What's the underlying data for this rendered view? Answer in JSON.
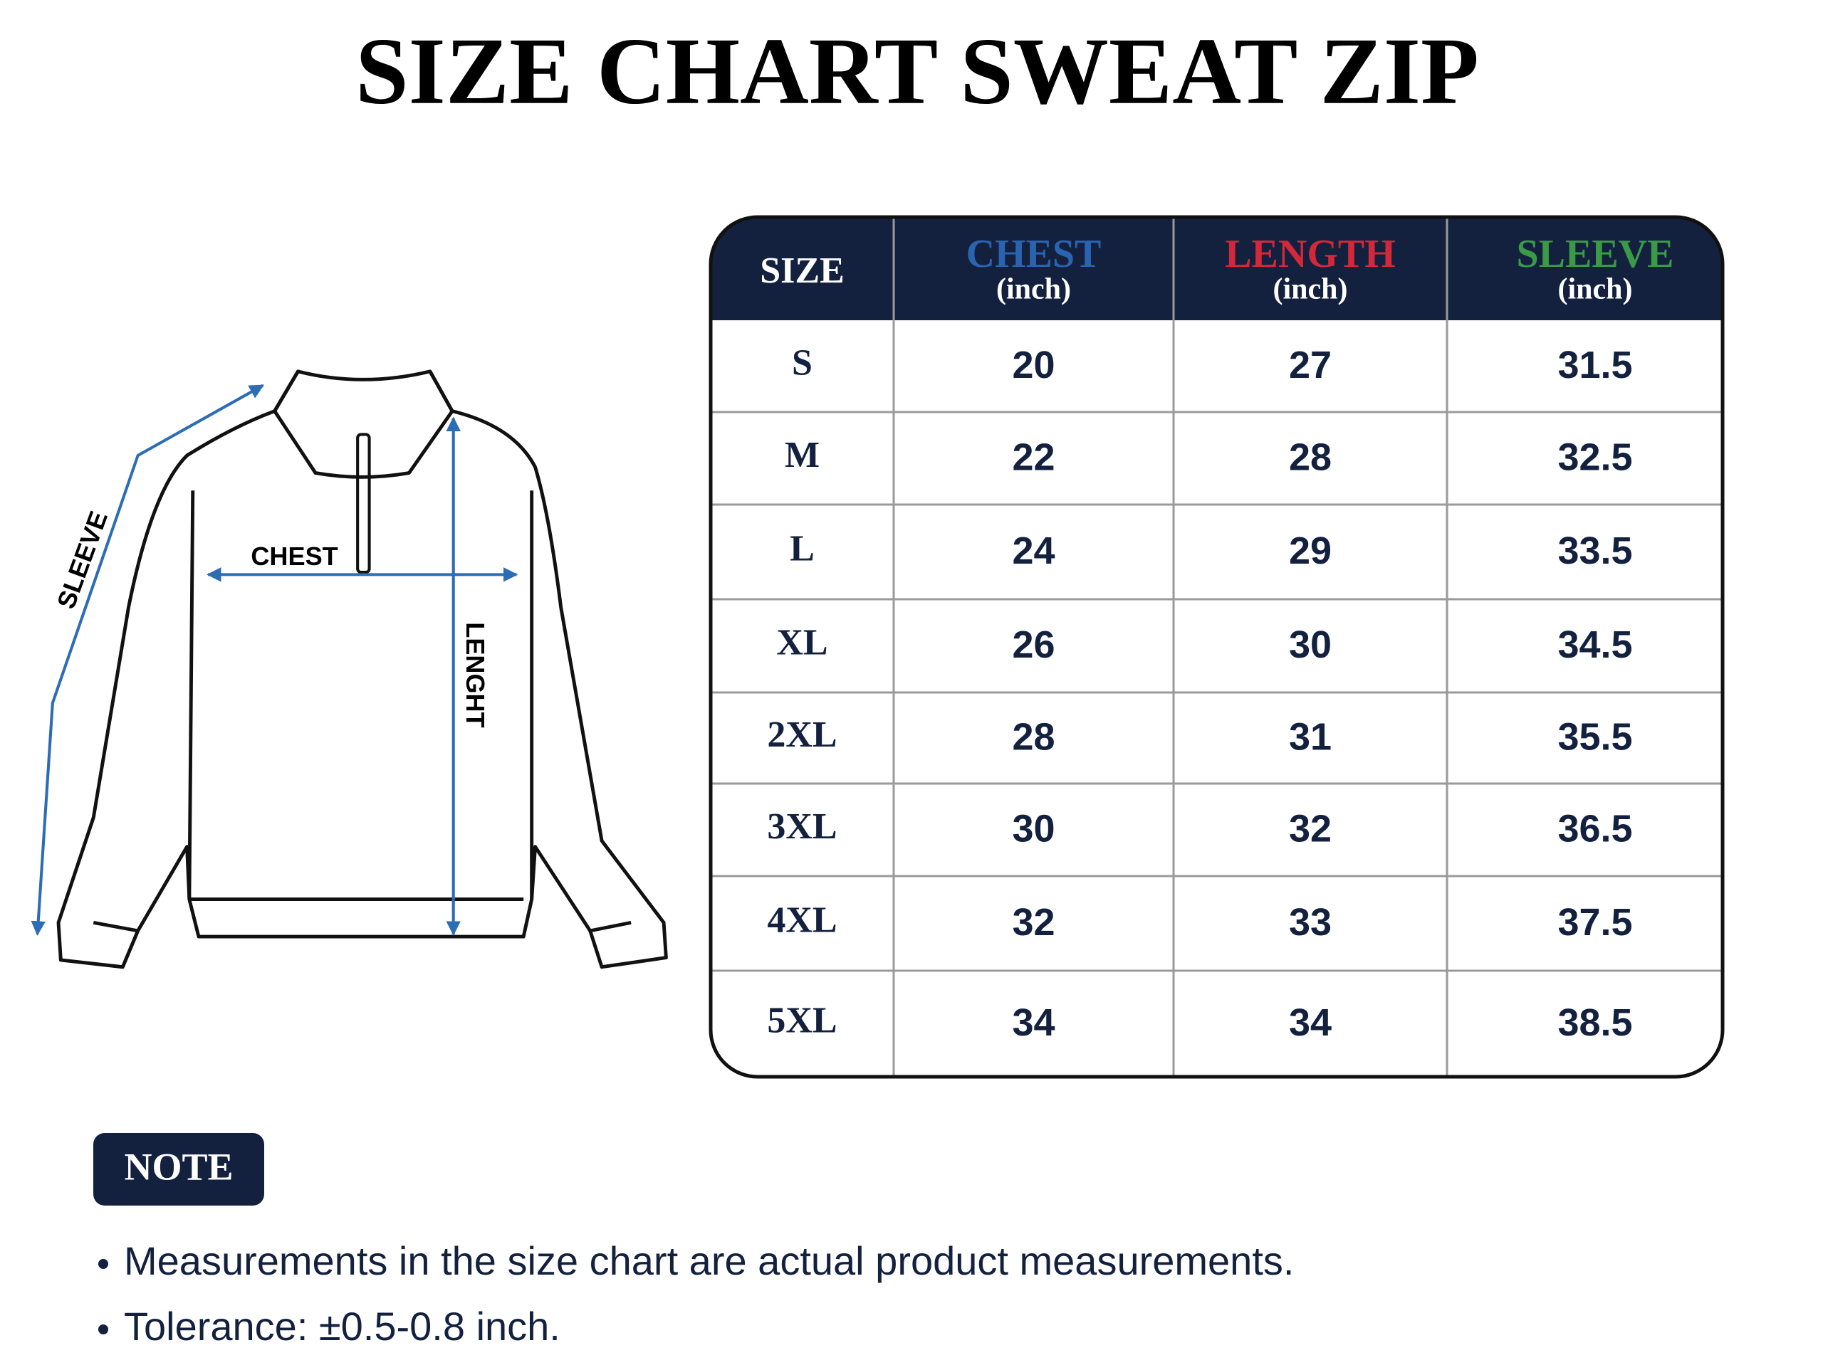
{
  "title": "SIZE CHART SWEAT ZIP",
  "diagram": {
    "sleeve_label": "SLEEVE",
    "chest_label": "CHEST",
    "length_label": "LENGHT"
  },
  "table": {
    "headers": [
      {
        "name": "SIZE",
        "color": "#ffffff"
      },
      {
        "name": "CHEST",
        "unit": "(inch)",
        "color": "#2a64b0"
      },
      {
        "name": "LENGTH",
        "unit": "(inch)",
        "color": "#d3283a"
      },
      {
        "name": "SLEEVE",
        "unit": "(inch)",
        "color": "#3a9a45"
      }
    ],
    "rows": [
      [
        "S",
        "20",
        "27",
        "31.5"
      ],
      [
        "M",
        "22",
        "28",
        "32.5"
      ],
      [
        "L",
        "24",
        "29",
        "33.5"
      ],
      [
        "XL",
        "26",
        "30",
        "34.5"
      ],
      [
        "2XL",
        "28",
        "31",
        "35.5"
      ],
      [
        "3XL",
        "30",
        "32",
        "36.5"
      ],
      [
        "4XL",
        "32",
        "33",
        "37.5"
      ],
      [
        "5XL",
        "34",
        "34",
        "38.5"
      ]
    ]
  },
  "note": {
    "label": "NOTE",
    "items": [
      "Measurements in the size chart are actual product measurements.",
      "Tolerance: ±0.5-0.8 inch."
    ]
  }
}
